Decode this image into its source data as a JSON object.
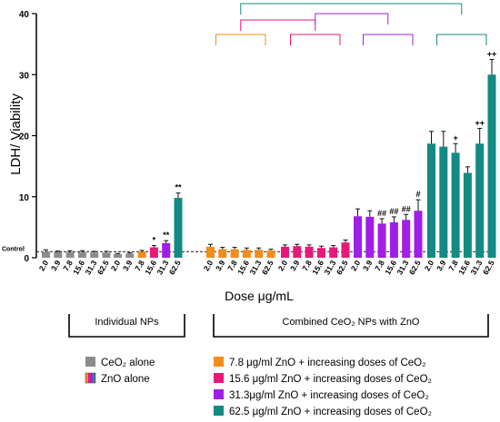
{
  "chart_data": {
    "type": "bar",
    "ylabel": "LDH/ Viability",
    "xlabel": "Dose μg/mL",
    "ylim": [
      0,
      40
    ],
    "yticks": [
      0,
      10,
      20,
      30,
      40
    ],
    "control_label": "Control",
    "control_value": 1.0,
    "groups": [
      {
        "key": "ceo2",
        "color": "#8c8c8c",
        "categories": [
          "2.0",
          "3.9",
          "7.8",
          "15.6",
          "31.3",
          "62.5"
        ],
        "values": [
          1.0,
          0.9,
          0.95,
          0.95,
          0.85,
          0.85
        ],
        "errors": [
          0.3,
          0.2,
          0.2,
          0.2,
          0.2,
          0.2
        ],
        "annotations": [
          "",
          "",
          "",
          "",
          "",
          ""
        ]
      },
      {
        "key": "zno",
        "color": "multi",
        "categories": [
          "2.0",
          "3.9",
          "7.8",
          "15.6",
          "31.3",
          "62.5"
        ],
        "values": [
          0.6,
          0.7,
          1.0,
          1.7,
          2.4,
          9.8
        ],
        "errors": [
          0.1,
          0.1,
          0.2,
          0.3,
          0.4,
          0.8
        ],
        "bar_colors": [
          "#8c8c8c",
          "#8c8c8c",
          "#f28c1b",
          "#e6197a",
          "#a11ee6",
          "#138a82"
        ],
        "annotations": [
          "",
          "",
          "",
          "*",
          "**",
          "**"
        ]
      },
      {
        "key": "zno7",
        "color": "#f28c1b",
        "categories": [
          "2.0",
          "3.9",
          "7.8",
          "15.6",
          "31.3",
          "62.5"
        ],
        "values": [
          1.8,
          1.4,
          1.4,
          1.3,
          1.3,
          1.2
        ],
        "errors": [
          0.4,
          0.3,
          0.3,
          0.3,
          0.3,
          0.2
        ],
        "annotations": [
          "",
          "",
          "",
          "",
          "",
          ""
        ]
      },
      {
        "key": "zno15",
        "color": "#e6197a",
        "categories": [
          "2.0",
          "3.9",
          "7.8",
          "15.6",
          "31.3",
          "62.5"
        ],
        "values": [
          1.8,
          1.9,
          1.8,
          1.6,
          1.7,
          2.5
        ],
        "errors": [
          0.3,
          0.3,
          0.3,
          0.3,
          0.3,
          0.4
        ],
        "annotations": [
          "",
          "",
          "",
          "",
          "",
          ""
        ]
      },
      {
        "key": "zno31",
        "color": "#a11ee6",
        "categories": [
          "2.0",
          "3.9",
          "7.8",
          "15.6",
          "31.3",
          "62.5"
        ],
        "values": [
          6.8,
          6.7,
          5.6,
          5.8,
          6.2,
          7.7
        ],
        "errors": [
          1.2,
          1.0,
          0.8,
          0.9,
          0.9,
          1.8
        ],
        "annotations": [
          "",
          "",
          "##",
          "##",
          "##",
          "#"
        ]
      },
      {
        "key": "zno62",
        "color": "#138a82",
        "categories": [
          "2.0",
          "3.9",
          "7.8",
          "15.6",
          "31.3",
          "62.5"
        ],
        "values": [
          18.7,
          18.2,
          17.2,
          13.9,
          18.7,
          30.0
        ],
        "errors": [
          2.0,
          2.5,
          1.5,
          1.0,
          2.5,
          2.5
        ],
        "annotations": [
          "",
          "",
          "+",
          "",
          "++",
          "++"
        ]
      }
    ],
    "section_labels": {
      "individual": "Individual NPs",
      "combined": "Combined CeO₂ NPs with ZnO"
    },
    "legend": [
      {
        "label": "CeO₂ alone",
        "color": "#8c8c8c"
      },
      {
        "label": "ZnO alone",
        "color": "multi"
      },
      {
        "label": "7.8 μg/ml ZnO + increasing doses of CeO₂",
        "color": "#f28c1b"
      },
      {
        "label": "15.6 μg/ml ZnO + increasing doses of CeO₂",
        "color": "#e6197a"
      },
      {
        "label": "31.3μg/ml ZnO + increasing doses of CeO₂",
        "color": "#a11ee6"
      },
      {
        "label": "62.5 μg/ml ZnO + increasing doses of CeO₂",
        "color": "#138a82"
      }
    ],
    "comparison_brackets": [
      {
        "from": "zno7",
        "to": "zno62",
        "color": "#138a82"
      },
      {
        "from": "zno15",
        "to": "zno31",
        "color": "#a11ee6"
      },
      {
        "from": "zno7",
        "to": "zno15",
        "color": "#e6197a"
      },
      {
        "from": "zno7",
        "to": "zno7",
        "color": "#f28c1b"
      },
      {
        "from": "zno15",
        "to": "zno15",
        "color": "#e6197a"
      },
      {
        "from": "zno31",
        "to": "zno31",
        "color": "#a11ee6"
      },
      {
        "from": "zno62",
        "to": "zno62",
        "color": "#138a82"
      }
    ]
  }
}
